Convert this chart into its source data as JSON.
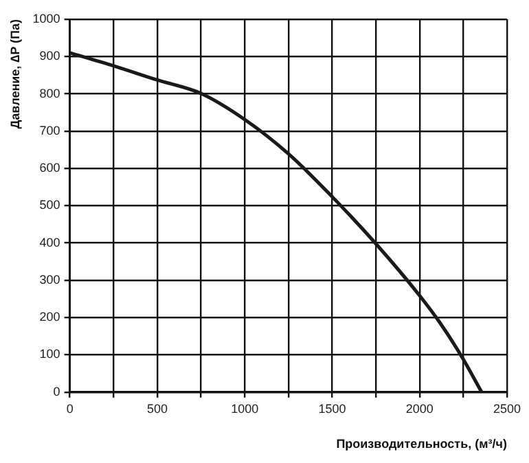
{
  "chart_data": {
    "type": "line",
    "xlabel": "Производительность, (м³/ч)",
    "ylabel": "Давление, ∆P (Па)",
    "series": [
      {
        "color": "#1a1a1a",
        "x": [
          0,
          250,
          500,
          750,
          1000,
          1250,
          1500,
          1750,
          2000,
          2115,
          2240,
          2355
        ],
        "values": [
          910,
          875,
          837,
          801,
          731,
          639,
          524,
          398,
          259,
          187,
          96,
          0
        ]
      }
    ],
    "xlim": [
      0,
      2500
    ],
    "ylim": [
      0,
      1000
    ],
    "xticks": [
      0,
      {
        "value": 250,
        "label": null
      },
      500,
      {
        "value": 750,
        "label": null
      },
      1000,
      {
        "value": 1250,
        "label": null
      },
      1500,
      {
        "value": 1750,
        "label": null
      },
      2000,
      {
        "value": 2250,
        "label": null
      },
      2500
    ],
    "yticks": [
      0,
      100,
      200,
      300,
      400,
      500,
      600,
      700,
      800,
      900,
      1000
    ],
    "grid": true,
    "legend": false,
    "marker": "none",
    "line_style": "solid"
  }
}
